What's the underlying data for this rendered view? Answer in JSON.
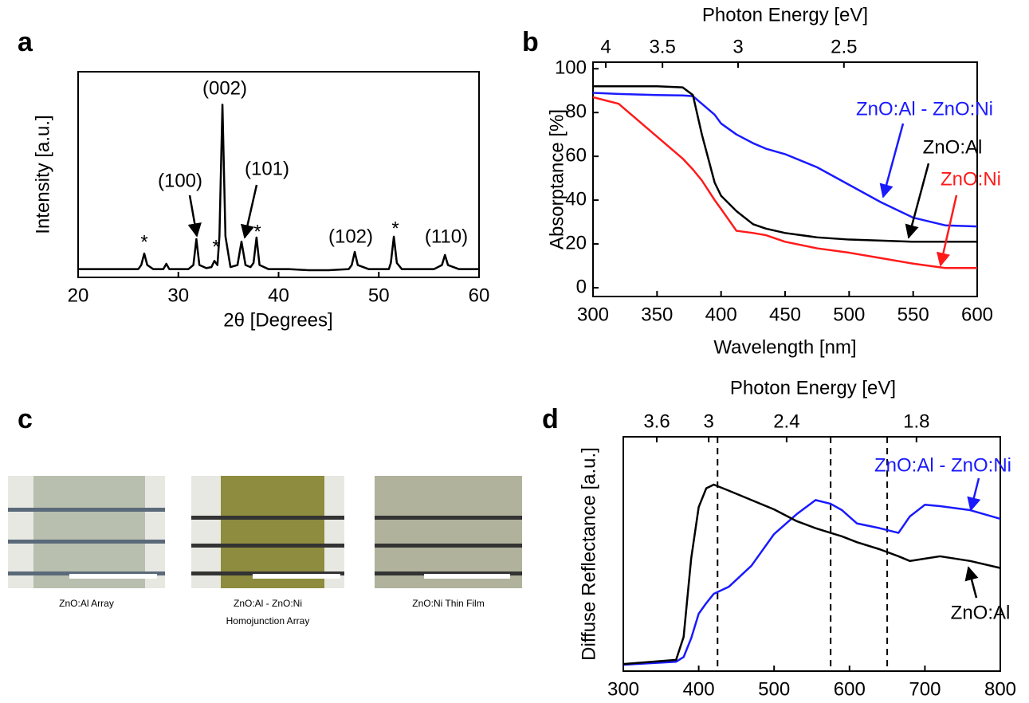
{
  "chart_data": [
    {
      "type": "line",
      "panel": "a",
      "xlabel": "2θ [Degrees]",
      "ylabel": "Intensity [a.u.]",
      "color": "#000000",
      "xlim": [
        20,
        60
      ],
      "xticks": [
        20,
        30,
        40,
        50,
        60
      ],
      "ylim": [
        0,
        100
      ],
      "x": [
        20,
        22,
        24,
        26,
        26.3,
        26.6,
        26.9,
        27.5,
        28.5,
        28.8,
        29.1,
        30,
        31,
        31.5,
        31.8,
        32.1,
        32.8,
        33.3,
        33.6,
        33.9,
        34.1,
        34.4,
        34.7,
        35.2,
        35.9,
        36.3,
        36.7,
        37.2,
        37.5,
        37.8,
        38.1,
        39,
        41,
        43,
        45,
        47,
        47.3,
        47.6,
        47.9,
        49,
        51,
        51.2,
        51.5,
        51.8,
        52.3,
        54,
        55.5,
        56.3,
        56.6,
        56.9,
        58,
        60
      ],
      "values": [
        4,
        4,
        4,
        4,
        6,
        11.6,
        6,
        4,
        4,
        6.6,
        4,
        4,
        4,
        6,
        18.6,
        6,
        4.5,
        5,
        8,
        6,
        20,
        84,
        20,
        5,
        6,
        17.4,
        6,
        5,
        7,
        19.4,
        6,
        4,
        4,
        3.5,
        3.5,
        4,
        6,
        12.4,
        6,
        4,
        4,
        7,
        19.8,
        7,
        4,
        4,
        4,
        6,
        10.9,
        6,
        4,
        4
      ],
      "annotations": [
        "(002)",
        "(100)",
        "(101)",
        "(102)",
        "(110)",
        "*",
        "*",
        "*",
        "*"
      ]
    },
    {
      "type": "line",
      "panel": "b",
      "xlabel": "Wavelength [nm]",
      "ylabel": "Absorptance [%]",
      "x2label": "Photon Energy [eV]",
      "xlim": [
        300,
        600
      ],
      "xticks": [
        300,
        350,
        400,
        450,
        500,
        550,
        600
      ],
      "ylim": [
        -4,
        103
      ],
      "yticks": [
        0,
        20,
        40,
        60,
        80,
        100
      ],
      "x2ticks": [
        4,
        3.5,
        3,
        2.5
      ],
      "x": [
        300,
        320,
        350,
        370,
        378,
        385,
        395,
        400,
        412,
        425,
        435,
        450,
        475,
        500,
        525,
        550,
        575,
        600
      ],
      "series": [
        {
          "name": "ZnO:Al - ZnO:Ni",
          "color": "#1a1aff",
          "values": [
            89,
            88.5,
            88,
            87.8,
            87.5,
            84,
            79,
            75,
            70,
            66,
            63.5,
            61,
            55,
            47,
            39,
            32,
            28.5,
            28
          ]
        },
        {
          "name": "ZnO:Al",
          "color": "#000000",
          "values": [
            92,
            92,
            92,
            91.5,
            88,
            70,
            48,
            42,
            35,
            29,
            27,
            25,
            23,
            22,
            21.5,
            21,
            21,
            21
          ]
        },
        {
          "name": "ZnO:Ni",
          "color": "#ff1a1a",
          "values": [
            87,
            84,
            69,
            59,
            54,
            49,
            40,
            36,
            26,
            25,
            24,
            21,
            18,
            16,
            13.5,
            11,
            9,
            9
          ]
        }
      ]
    },
    {
      "type": "line",
      "panel": "d",
      "ylabel": "Diffuse Reflectance [a.u.]",
      "x2label": "Photon Energy [eV]",
      "xlim": [
        300,
        800
      ],
      "xticks": [
        300,
        400,
        500,
        600,
        700,
        800
      ],
      "ylim": [
        0,
        100
      ],
      "x2ticks": [
        3.6,
        3,
        2.4,
        1.8
      ],
      "vlines": [
        425,
        575,
        650
      ],
      "x": [
        300,
        370,
        380,
        390,
        400,
        410,
        420,
        440,
        470,
        500,
        530,
        555,
        575,
        590,
        610,
        640,
        665,
        680,
        700,
        720,
        760,
        800
      ],
      "series": [
        {
          "name": "ZnO:Al - ZnO:Ni",
          "color": "#1a1aff",
          "values": [
            2.7,
            4,
            6,
            14,
            24.5,
            29,
            33,
            36,
            45,
            58.5,
            67,
            73,
            71.4,
            68.7,
            63,
            61,
            59,
            66,
            71,
            70.4,
            68.7,
            65
          ]
        },
        {
          "name": "ZnO:Al",
          "color": "#000000",
          "values": [
            3,
            4.8,
            14.6,
            48,
            70,
            78,
            79.6,
            77,
            73,
            69,
            64,
            61,
            59,
            57.5,
            55,
            52,
            49,
            47,
            48,
            49,
            47,
            44
          ]
        }
      ]
    }
  ],
  "panel_c": {
    "label": "c",
    "captions": [
      "ZnO:Al Array",
      "ZnO:Al - ZnO:Ni",
      "Homojunction Array",
      "ZnO:Ni Thin Film"
    ]
  }
}
